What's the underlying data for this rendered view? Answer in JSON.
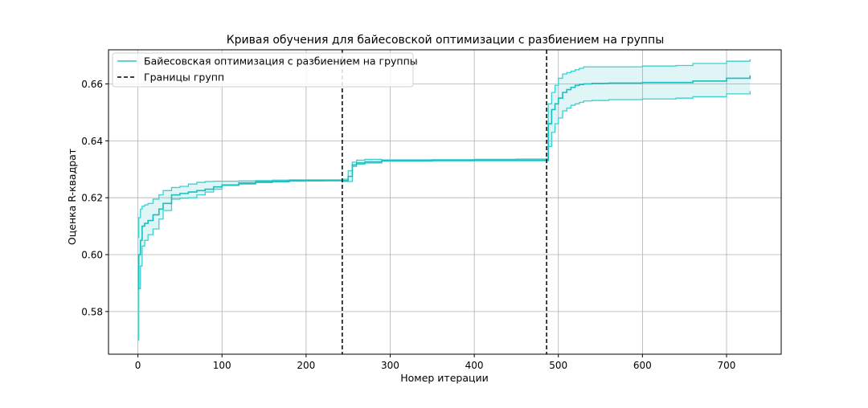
{
  "chart_data": {
    "type": "line",
    "title": "Кривая обучения для байесовской оптимизации с разбиением на группы",
    "xlabel": "Номер итерации",
    "ylabel": "Оценка R-квадрат",
    "xlim": [
      -35,
      765
    ],
    "ylim": [
      0.565,
      0.672
    ],
    "xticks": [
      0,
      100,
      200,
      300,
      400,
      500,
      600,
      700
    ],
    "yticks": [
      0.58,
      0.6,
      0.62,
      0.64,
      0.66
    ],
    "ytick_labels": [
      "0.58",
      "0.60",
      "0.62",
      "0.64",
      "0.66"
    ],
    "grid": true,
    "legend": {
      "position": "top-left",
      "entries": [
        {
          "label": "Байесовская оптимизация с разбиением на группы",
          "style": "solid",
          "color": "#2ec4c4"
        },
        {
          "label": "Границы групп",
          "style": "dashed",
          "color": "#000000"
        }
      ]
    },
    "colors": {
      "line": "#17bfc0",
      "band_line": "#3ecfcf",
      "band_fill": "#2ec4c4",
      "boundary": "#000000",
      "grid": "#b0b0b0"
    },
    "group_boundaries": [
      243,
      486
    ],
    "series": [
      {
        "role": "mean",
        "x": [
          0,
          1,
          3,
          5,
          8,
          12,
          18,
          25,
          30,
          40,
          50,
          60,
          70,
          80,
          90,
          100,
          120,
          140,
          160,
          180,
          200,
          220,
          243,
          250,
          255,
          260,
          270,
          290,
          300,
          350,
          400,
          450,
          486,
          488,
          492,
          496,
          500,
          505,
          510,
          515,
          520,
          525,
          530,
          540,
          560,
          600,
          640,
          660,
          700,
          728
        ],
        "y": [
          0.588,
          0.6,
          0.605,
          0.61,
          0.611,
          0.612,
          0.614,
          0.616,
          0.618,
          0.621,
          0.6215,
          0.622,
          0.6225,
          0.623,
          0.6238,
          0.6245,
          0.6252,
          0.6256,
          0.6258,
          0.626,
          0.626,
          0.626,
          0.626,
          0.6275,
          0.6315,
          0.6322,
          0.6326,
          0.633,
          0.633,
          0.6331,
          0.6332,
          0.6332,
          0.6332,
          0.646,
          0.651,
          0.653,
          0.655,
          0.657,
          0.658,
          0.6588,
          0.6595,
          0.6598,
          0.66,
          0.6602,
          0.6603,
          0.6605,
          0.6605,
          0.661,
          0.662,
          0.663
        ]
      },
      {
        "role": "upper",
        "x": [
          0,
          1,
          3,
          5,
          8,
          12,
          18,
          25,
          30,
          40,
          50,
          60,
          70,
          80,
          90,
          100,
          120,
          140,
          160,
          180,
          200,
          220,
          243,
          250,
          255,
          260,
          270,
          290,
          300,
          350,
          400,
          450,
          486,
          488,
          492,
          496,
          500,
          505,
          510,
          515,
          520,
          525,
          530,
          540,
          560,
          600,
          640,
          660,
          700,
          728
        ],
        "y": [
          0.606,
          0.613,
          0.616,
          0.617,
          0.6175,
          0.618,
          0.6195,
          0.621,
          0.6225,
          0.6236,
          0.624,
          0.6248,
          0.6254,
          0.6257,
          0.6258,
          0.6258,
          0.6259,
          0.626,
          0.6262,
          0.6263,
          0.6263,
          0.6263,
          0.6265,
          0.6295,
          0.6325,
          0.6332,
          0.6335,
          0.6333,
          0.6333,
          0.6334,
          0.6335,
          0.6336,
          0.6338,
          0.653,
          0.657,
          0.6595,
          0.662,
          0.6635,
          0.664,
          0.6645,
          0.665,
          0.6655,
          0.666,
          0.666,
          0.666,
          0.6663,
          0.6665,
          0.6672,
          0.668,
          0.6687
        ]
      },
      {
        "role": "lower",
        "x": [
          0,
          1,
          3,
          5,
          8,
          12,
          18,
          25,
          30,
          40,
          50,
          60,
          70,
          80,
          90,
          100,
          120,
          140,
          160,
          180,
          200,
          220,
          243,
          250,
          255,
          260,
          270,
          290,
          300,
          350,
          400,
          450,
          486,
          488,
          492,
          496,
          500,
          505,
          510,
          515,
          520,
          525,
          530,
          540,
          560,
          600,
          640,
          660,
          700,
          728
        ],
        "y": [
          0.57,
          0.588,
          0.596,
          0.603,
          0.605,
          0.607,
          0.609,
          0.6125,
          0.6155,
          0.6195,
          0.6198,
          0.62,
          0.621,
          0.622,
          0.623,
          0.6243,
          0.6248,
          0.6253,
          0.6256,
          0.6258,
          0.6259,
          0.626,
          0.6257,
          0.6257,
          0.631,
          0.6318,
          0.6322,
          0.6329,
          0.6329,
          0.633,
          0.633,
          0.633,
          0.633,
          0.638,
          0.643,
          0.646,
          0.648,
          0.6505,
          0.6515,
          0.6525,
          0.653,
          0.6535,
          0.654,
          0.6542,
          0.6545,
          0.6547,
          0.655,
          0.6555,
          0.6565,
          0.6575
        ]
      }
    ]
  }
}
